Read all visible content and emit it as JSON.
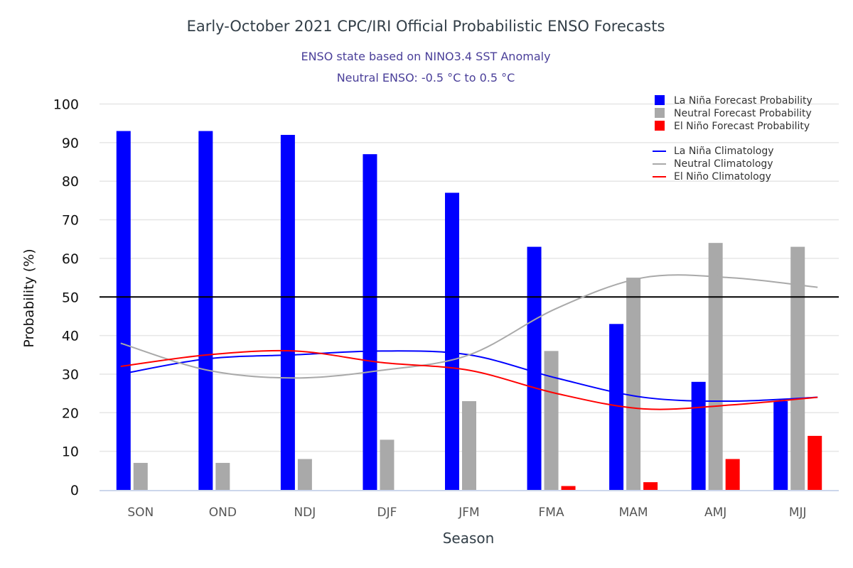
{
  "chart_data": {
    "type": "bar",
    "title": "Early-October 2021 CPC/IRI Official Probabilistic ENSO Forecasts",
    "subtitle_lines": [
      "ENSO state based on NINO3.4 SST Anomaly",
      "Neutral ENSO: -0.5 °C to 0.5 °C"
    ],
    "xlabel": "Season",
    "ylabel": "Probability (%)",
    "ylim": [
      0,
      100
    ],
    "yticks": [
      0,
      10,
      20,
      30,
      40,
      50,
      60,
      70,
      80,
      90,
      100
    ],
    "grid": true,
    "reference_line": 50,
    "legend_position": "top-right",
    "categories": [
      "SON",
      "OND",
      "NDJ",
      "DJF",
      "JFM",
      "FMA",
      "MAM",
      "AMJ",
      "MJJ"
    ],
    "series": [
      {
        "name": "La Niña Forecast Probability",
        "kind": "bar",
        "color": "#0000ff",
        "values": [
          93,
          93,
          92,
          87,
          77,
          63,
          43,
          28,
          23
        ]
      },
      {
        "name": "Neutral Forecast Probability",
        "kind": "bar",
        "color": "#a9a9a9",
        "values": [
          7,
          7,
          8,
          13,
          23,
          36,
          55,
          64,
          63
        ]
      },
      {
        "name": "El Niño Forecast Probability",
        "kind": "bar",
        "color": "#ff0000",
        "values": [
          0,
          0,
          0,
          0,
          0,
          1,
          2,
          8,
          14
        ]
      },
      {
        "name": "La Niña Climatology",
        "kind": "line",
        "color": "#0000ff",
        "values": [
          30,
          34,
          35,
          36,
          35,
          29,
          24,
          23,
          24
        ]
      },
      {
        "name": "Neutral Climatology",
        "kind": "line",
        "color": "#a9a9a9",
        "values": [
          38,
          31,
          29,
          31,
          35,
          47,
          55,
          55,
          52.5
        ]
      },
      {
        "name": "El Niño Climatology",
        "kind": "line",
        "color": "#ff0000",
        "values": [
          32,
          35,
          36,
          33,
          31,
          25,
          21,
          22,
          24
        ]
      }
    ]
  }
}
